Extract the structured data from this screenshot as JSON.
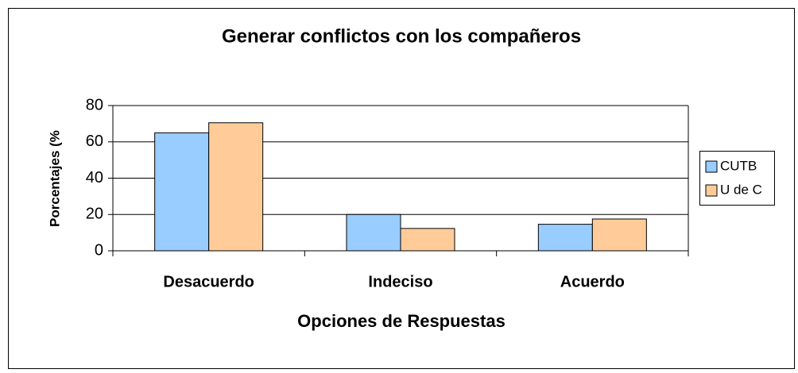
{
  "chart_data": {
    "type": "bar",
    "title": "Generar conflictos con los compañeros",
    "categories": [
      "Desacuerdo",
      "Indeciso",
      "Acuerdo"
    ],
    "series": [
      {
        "name": "CUTB",
        "color": "#99ccff",
        "values": [
          65,
          20,
          14.6
        ]
      },
      {
        "name": "U de C",
        "color": "#ffcc99",
        "values": [
          70.5,
          12.3,
          17.5
        ]
      }
    ],
    "x_label": "Opciones de Respuestas",
    "y_label": "Porcentajes (%",
    "ylim": [
      0,
      80
    ],
    "yticks": [
      0,
      20,
      40,
      60,
      80
    ],
    "grid": true,
    "legend": "right"
  }
}
